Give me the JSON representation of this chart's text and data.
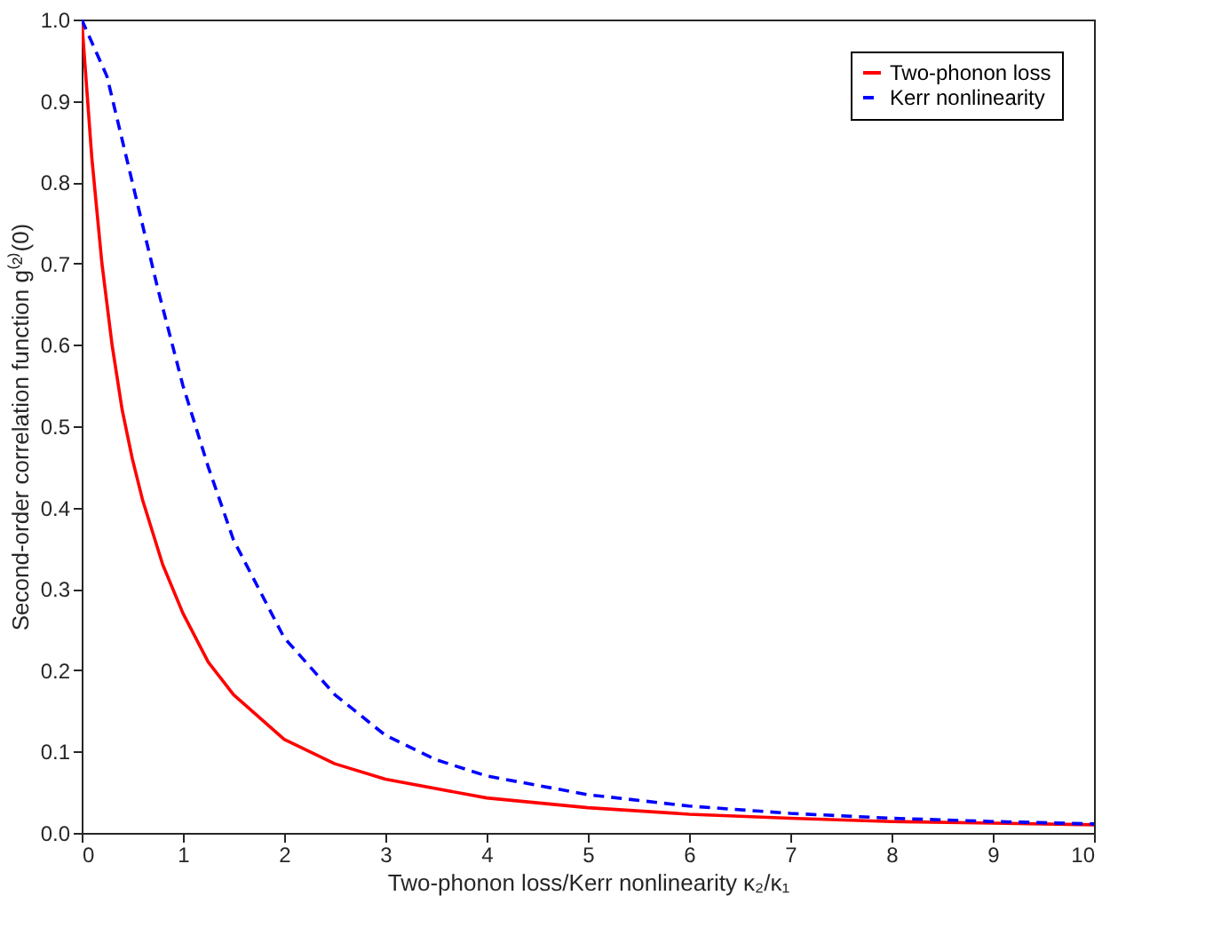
{
  "chart_data": {
    "type": "line",
    "xlabel": "Two-phonon loss/Kerr nonlinearity κ₂/κ₁",
    "ylabel": "Second-order correlation function g⁽²⁾(0)",
    "xlim": [
      0,
      10
    ],
    "xticks": [
      0,
      1,
      2,
      3,
      4,
      5,
      6,
      7,
      8,
      9,
      10
    ],
    "ylim": [
      0,
      1
    ],
    "yticks": [
      {
        "value": 0,
        "label": "0.0"
      },
      0.1,
      0.2,
      0.3,
      0.4,
      0.5,
      0.6,
      0.7,
      0.8,
      0.9,
      {
        "value": 1,
        "label": "1.0"
      }
    ],
    "grid": false,
    "legend": "top right",
    "series": [
      {
        "name": "Two-phonon loss",
        "color": "#ff0000",
        "line_style": "solid",
        "x": [
          0,
          0.1,
          0.2,
          0.3,
          0.4,
          0.5,
          0.6,
          0.8,
          1,
          1.25,
          1.5,
          2,
          2.5,
          3,
          4,
          5,
          6,
          7,
          8,
          9,
          10
        ],
        "values": [
          1,
          0.83,
          0.7,
          0.6,
          0.52,
          0.46,
          0.41,
          0.33,
          0.27,
          0.21,
          0.17,
          0.115,
          0.085,
          0.066,
          0.043,
          0.031,
          0.023,
          0.018,
          0.014,
          0.012,
          0.01
        ]
      },
      {
        "name": "Kerr nonlinearity",
        "color": "#0000ff",
        "line_style": "dashed",
        "x": [
          0,
          0.25,
          0.5,
          0.75,
          1,
          1.25,
          1.5,
          2,
          2.5,
          3,
          3.5,
          4,
          5,
          6,
          7,
          8,
          9,
          10
        ],
        "values": [
          1,
          0.93,
          0.8,
          0.67,
          0.55,
          0.45,
          0.36,
          0.24,
          0.17,
          0.12,
          0.09,
          0.07,
          0.047,
          0.033,
          0.024,
          0.018,
          0.014,
          0.011
        ]
      }
    ]
  }
}
